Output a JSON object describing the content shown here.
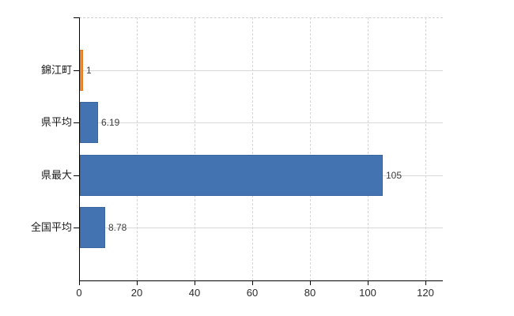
{
  "chart": {
    "background_color": "#ffffff",
    "axis_color": "#000000",
    "grid_color_horizontal": "#d9d9d9",
    "grid_color_vertical": "#d5d5d5",
    "category_text_color": "#1a1a1a",
    "value_text_color": "#3d3d3d"
  },
  "chart_data": {
    "type": "bar",
    "orientation": "horizontal",
    "title": "",
    "xlabel": "",
    "ylabel": "",
    "categories": [
      "錦江町",
      "県平均",
      "県最大",
      "全国平均"
    ],
    "values": [
      1,
      6.19,
      105,
      8.78
    ],
    "value_labels": [
      "1",
      "6.19",
      "105",
      "8.78"
    ],
    "bar_colors": [
      "#f08a38",
      "#4473b2",
      "#4473b2",
      "#4473b2"
    ],
    "bar_border_colors": [
      "#dd7a24",
      "#3a65a3",
      "#3a65a3",
      "#3a65a3"
    ],
    "xlim": [
      0,
      126
    ],
    "xticks": [
      0,
      20,
      40,
      60,
      80,
      100,
      120
    ],
    "xtick_labels": [
      "0",
      "20",
      "40",
      "60",
      "80",
      "100",
      "120"
    ],
    "grid": true,
    "legend": false
  }
}
